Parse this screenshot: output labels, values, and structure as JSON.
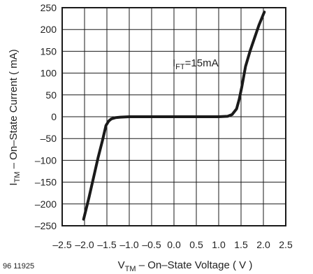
{
  "figure_id": "96 11925",
  "chart_data": {
    "type": "line",
    "xlabel": {
      "main": "V",
      "sub": "TM",
      "rest": " – On–State Voltage ( V )"
    },
    "ylabel": {
      "main": "I",
      "sub": "TM",
      "rest": " – On–State Current ( mA)"
    },
    "xlim": [
      -2.5,
      2.5
    ],
    "ylim": [
      -250,
      250
    ],
    "x_ticks": [
      -2.5,
      -2.0,
      -1.5,
      -1.0,
      -0.5,
      0.0,
      0.5,
      1.0,
      1.5,
      2.0,
      2.5
    ],
    "x_tick_labels": [
      "–2.5",
      "–2.0",
      "–1.5",
      "–1.0",
      "–0.5",
      "0.0",
      "0.5",
      "1.0",
      "1.5",
      "2.0",
      "2.5"
    ],
    "y_ticks": [
      250,
      200,
      150,
      100,
      50,
      0,
      -50,
      -100,
      -150,
      -200,
      -250
    ],
    "y_tick_labels": [
      "250",
      "200",
      "150",
      "100",
      "50",
      "0",
      "–50",
      "–100",
      "–150",
      "–200",
      "–250"
    ],
    "grid": true,
    "annotation": {
      "main": "I",
      "sub": "FT",
      "rest": "=15mA"
    },
    "series": [
      {
        "x": [
          -2.02,
          -1.9,
          -1.8,
          -1.7,
          -1.6,
          -1.52,
          -1.46,
          -1.4,
          -1.3,
          -1.2,
          -1.0,
          -0.5,
          0.0,
          0.5,
          1.0,
          1.2,
          1.3,
          1.4,
          1.46,
          1.52,
          1.6,
          1.7,
          1.8,
          1.9,
          2.02
        ],
        "y": [
          -235,
          -185,
          -140,
          -95,
          -55,
          -20,
          -10,
          -5,
          -2,
          -1,
          0,
          0,
          0,
          0,
          0,
          1,
          5,
          18,
          40,
          70,
          115,
          150,
          180,
          210,
          240
        ]
      }
    ],
    "line_color": "#1a1a1a"
  }
}
